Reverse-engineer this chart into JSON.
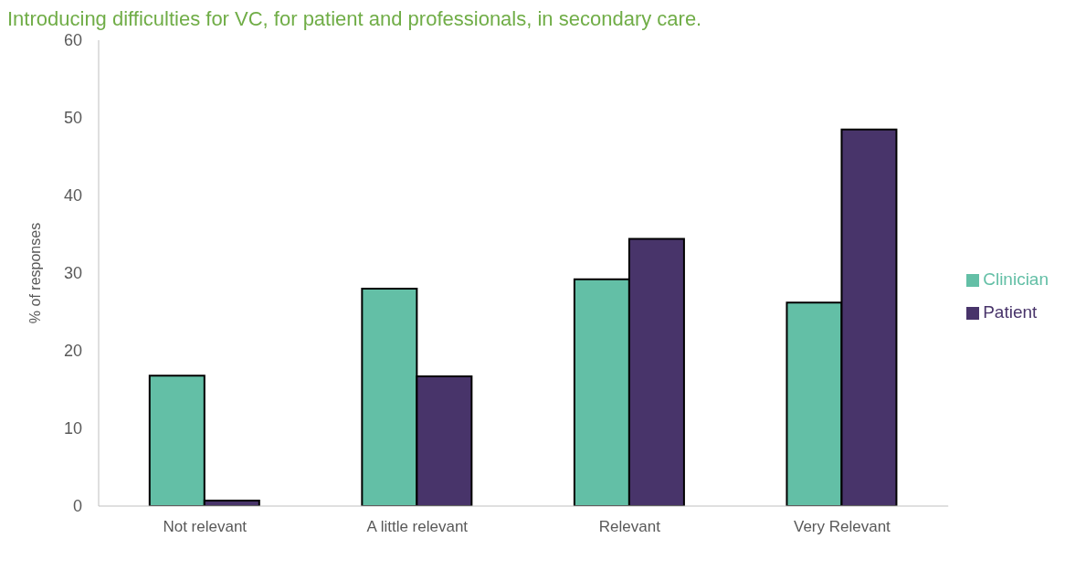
{
  "chart_data": {
    "type": "bar",
    "title": "Introducing difficulties for VC, for patient and professionals, in secondary care.",
    "ylabel": "% of responses",
    "categories": [
      "Not relevant",
      "A little relevant",
      "Relevant",
      "Very Relevant"
    ],
    "series": [
      {
        "name": "Clinician",
        "color": "#63bfa6",
        "values": [
          16.8,
          28.0,
          29.2,
          26.2
        ]
      },
      {
        "name": "Patient",
        "color": "#48346a",
        "values": [
          0.7,
          16.7,
          34.4,
          48.5
        ]
      }
    ],
    "ylim": [
      0,
      60
    ],
    "yticks": [
      0,
      10,
      20,
      30,
      40,
      50,
      60
    ],
    "grid": false,
    "legend": "right"
  }
}
